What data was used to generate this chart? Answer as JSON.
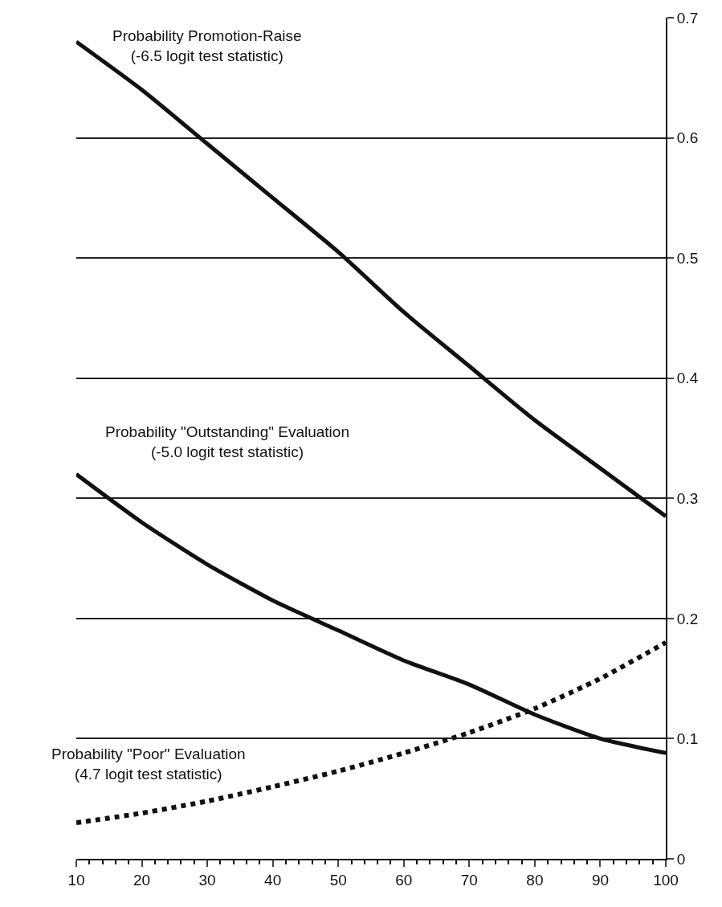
{
  "chart_data": {
    "type": "line",
    "x": [
      10,
      20,
      30,
      40,
      50,
      60,
      70,
      80,
      90,
      100
    ],
    "series": [
      {
        "name": "Probability Promotion-Raise",
        "color": "#111111",
        "line_style": "solid",
        "values": [
          0.68,
          0.64,
          0.595,
          0.55,
          0.505,
          0.455,
          0.41,
          0.365,
          0.325,
          0.285
        ]
      },
      {
        "name": "Probability \"Outstanding\" Evaluation",
        "color": "#111111",
        "line_style": "solid",
        "values": [
          0.32,
          0.28,
          0.245,
          0.215,
          0.19,
          0.165,
          0.145,
          0.12,
          0.1,
          0.088
        ]
      },
      {
        "name": "Probability \"Poor\" Evaluation",
        "color": "#111111",
        "line_style": "dotted",
        "values": [
          0.03,
          0.038,
          0.048,
          0.06,
          0.073,
          0.088,
          0.105,
          0.125,
          0.15,
          0.18
        ]
      }
    ],
    "annotations": [
      "(-6.5 logit test statistic)",
      "(-5.0 logit test statistic)",
      "(4.7 logit test statistic)"
    ],
    "xlim": [
      10,
      100
    ],
    "xticks": [
      10,
      20,
      30,
      40,
      50,
      60,
      70,
      80,
      90,
      100
    ],
    "ylim": [
      0,
      0.7
    ],
    "yticks": [
      0,
      0.1,
      0.2,
      0.3,
      0.4,
      0.5,
      0.6,
      0.7
    ],
    "grid": "y",
    "legend": false,
    "marker": "none"
  }
}
